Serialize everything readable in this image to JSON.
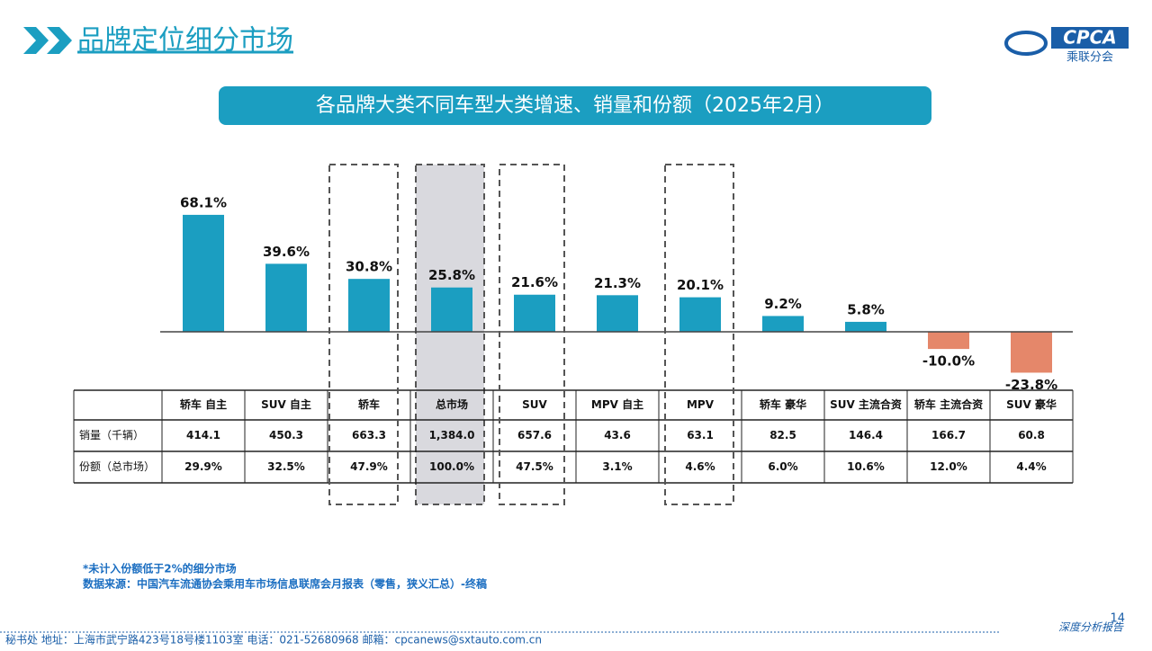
{
  "header": {
    "title": "品牌定位细分市场",
    "logo": "CPCA",
    "logo_sub": "乘联分会"
  },
  "chart_data": {
    "type": "bar",
    "title": "各品牌大类不同车型大类增速、销量和份额（2025年2月）",
    "categories": [
      "轿车 自主",
      "SUV 自主",
      "轿车",
      "总市场",
      "SUV",
      "MPV 自主",
      "MPV",
      "轿车 豪华",
      "SUV 主流合资",
      "轿车 主流合资",
      "SUV 豪华"
    ],
    "values": [
      68.1,
      39.6,
      30.8,
      25.8,
      21.6,
      21.3,
      20.1,
      9.2,
      5.8,
      -10.0,
      -23.8
    ],
    "value_labels": [
      "68.1%",
      "39.6%",
      "30.8%",
      "25.8%",
      "21.6%",
      "21.3%",
      "20.1%",
      "9.2%",
      "5.8%",
      "-10.0%",
      "-23.8%"
    ],
    "color": "#1b9ec1",
    "negative_color": "#e5876a",
    "table": {
      "rows": [
        {
          "label": "销量（千辆）",
          "values": [
            "414.1",
            "450.3",
            "663.3",
            "1,384.0",
            "657.6",
            "43.6",
            "63.1",
            "82.5",
            "146.4",
            "166.7",
            "60.8"
          ]
        },
        {
          "label": "份额（总市场）",
          "values": [
            "29.9%",
            "32.5%",
            "47.9%",
            "100.0%",
            "47.5%",
            "3.1%",
            "4.6%",
            "6.0%",
            "10.6%",
            "12.0%",
            "4.4%"
          ]
        }
      ]
    }
  },
  "notes": [
    "*未计入份额低于2%的细分市场",
    "数据来源：中国汽车流通协会乘用车市场信息联席会月报表（零售，狭义汇总）-终稿"
  ],
  "footer": {
    "contact": "秘书处   地址：上海市武宁路423号18号楼1103室   电话：021-52680968   邮箱：cpcanews@sxtauto.com.cn",
    "report": "深度分析报告",
    "page": "14"
  }
}
